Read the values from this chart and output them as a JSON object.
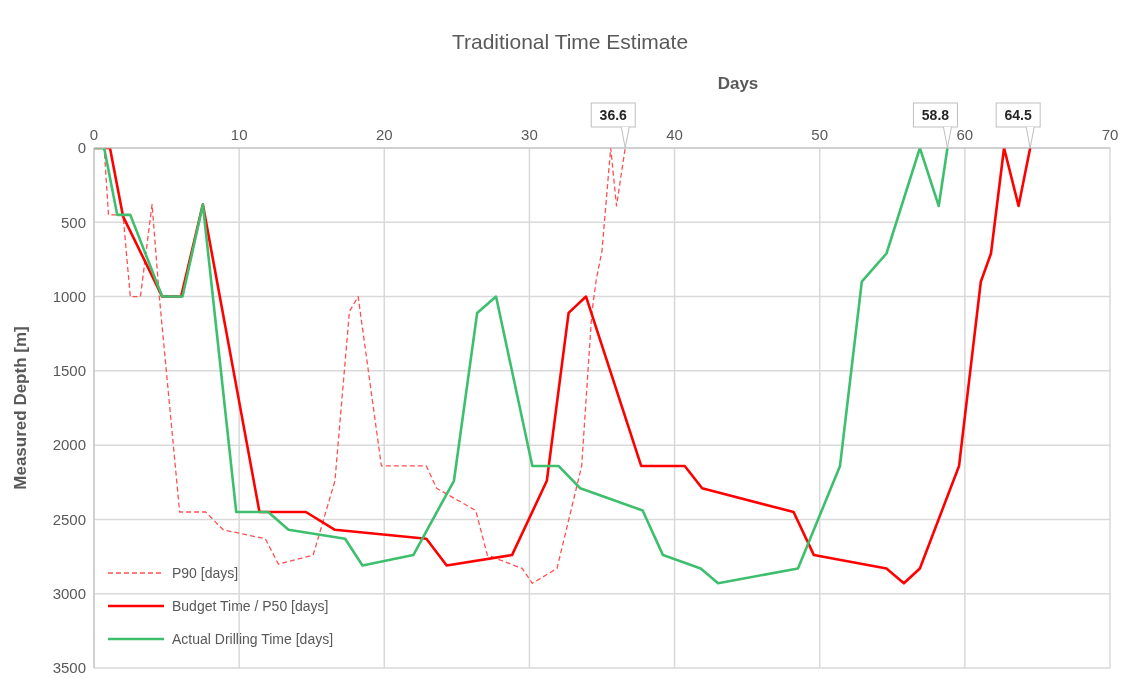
{
  "chart_data": {
    "type": "line",
    "title": "Traditional Time Estimate",
    "xlabel": "Days",
    "ylabel": "Measured Depth [m]",
    "xlim": [
      0,
      70
    ],
    "xticks": [
      0,
      10,
      20,
      30,
      40,
      50,
      60,
      70
    ],
    "ylim": [
      3500,
      0
    ],
    "yticks": [
      0,
      500,
      1000,
      1500,
      2000,
      2500,
      3000,
      3500
    ],
    "grid": true,
    "legend": "bottom left",
    "marker": "none",
    "series": [
      {
        "name": "P90 [days]",
        "color": "#ff5050",
        "line_style": "dashed",
        "x": [
          0,
          0.7,
          1.0,
          2.0,
          2.5,
          3.2,
          4.0,
          4.5,
          5.9,
          7.7,
          8.9,
          11.8,
          12.7,
          15.1,
          16.6,
          17.6,
          18.2,
          19.8,
          22.9,
          23.6,
          26.3,
          27.1,
          29.5,
          30.2,
          31.9,
          33.6,
          34.3,
          34.6,
          35.0,
          35.6,
          36.0,
          36.6
        ],
        "values": [
          0,
          0,
          450,
          450,
          1000,
          1000,
          380,
          1000,
          2450,
          2450,
          2570,
          2630,
          2800,
          2740,
          2240,
          1100,
          1000,
          2140,
          2140,
          2290,
          2440,
          2740,
          2830,
          2930,
          2830,
          2140,
          1110,
          890,
          690,
          0,
          390,
          0
        ]
      },
      {
        "name": "Budget Time / P50 [days]",
        "color": "#ff0000",
        "line_style": "solid",
        "x": [
          0,
          1.1,
          2.0,
          4.7,
          6.0,
          7.5,
          11.4,
          14.6,
          16.6,
          22.9,
          24.3,
          28.8,
          31.2,
          32.7,
          33.9,
          37.7,
          40.7,
          41.9,
          48.2,
          49.6,
          54.6,
          55.8,
          56.9,
          59.6,
          61.1,
          61.8,
          62.7,
          63.7,
          64.5
        ],
        "values": [
          0,
          0,
          460,
          1000,
          1000,
          380,
          2450,
          2450,
          2570,
          2630,
          2810,
          2740,
          2240,
          1110,
          1000,
          2140,
          2140,
          2290,
          2450,
          2740,
          2830,
          2930,
          2830,
          2140,
          900,
          710,
          0,
          390,
          0
        ]
      },
      {
        "name": "Actual Drilling Time [days]",
        "color": "#3dbf6e",
        "line_style": "solid",
        "x": [
          0,
          0.7,
          1.6,
          2.5,
          4.7,
          6.1,
          7.5,
          9.8,
          12.0,
          13.4,
          17.3,
          18.5,
          22.0,
          24.8,
          26.4,
          27.7,
          30.2,
          32.0,
          33.5,
          37.8,
          39.2,
          41.8,
          43.0,
          48.5,
          51.4,
          52.9,
          54.6,
          56.9,
          58.2,
          58.8
        ],
        "values": [
          0,
          0,
          450,
          450,
          1000,
          1000,
          380,
          2450,
          2450,
          2570,
          2630,
          2810,
          2740,
          2240,
          1110,
          1000,
          2140,
          2140,
          2290,
          2440,
          2740,
          2830,
          2930,
          2830,
          2140,
          900,
          710,
          0,
          390,
          0
        ]
      }
    ],
    "annotations": [
      {
        "text": "36.6",
        "x": 36.6,
        "y": 0
      },
      {
        "text": "58.8",
        "x": 58.8,
        "y": 0
      },
      {
        "text": "64.5",
        "x": 64.5,
        "y": 0
      }
    ]
  }
}
